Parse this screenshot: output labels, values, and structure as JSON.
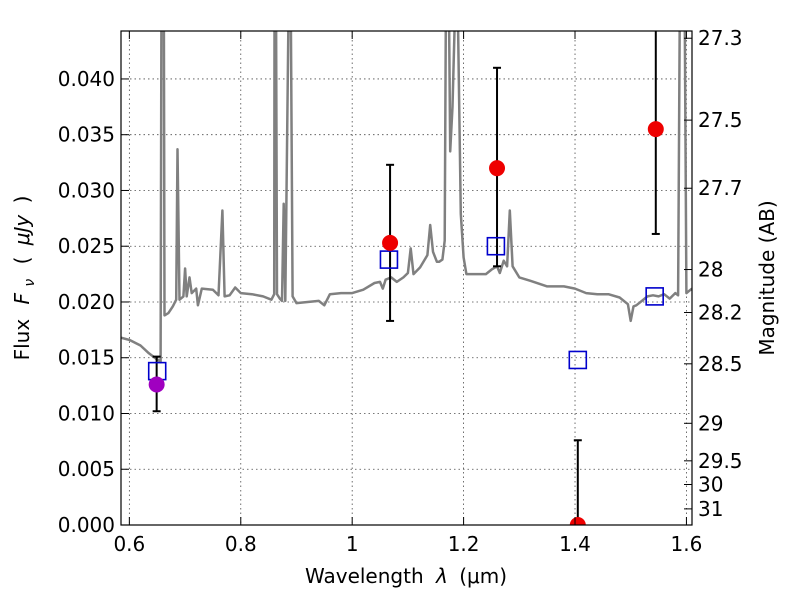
{
  "chart_data": {
    "type": "scatter",
    "xlabel": "Wavelength",
    "xlabel_symbol": "λ",
    "xlabel_unit": "(μm)",
    "ylabel": "Flux",
    "ylabel_symbol": "F",
    "ylabel_subscript": "ν",
    "ylabel_unit_open": "(",
    "ylabel_unit": "μJy",
    "ylabel_unit_close": ")",
    "y2label": "Magnitude (AB)",
    "xlim": [
      0.585,
      1.61
    ],
    "ylim": [
      0.0,
      0.0443
    ],
    "grid": true,
    "x_ticks": [
      {
        "value": 0.6,
        "label": "0.6"
      },
      {
        "value": 0.8,
        "label": "0.8"
      },
      {
        "value": 1.0,
        "label": "1"
      },
      {
        "value": 1.2,
        "label": "1.2"
      },
      {
        "value": 1.4,
        "label": "1.4"
      },
      {
        "value": 1.6,
        "label": "1.6"
      }
    ],
    "y_ticks": [
      {
        "value": 0.0,
        "label": "0.000"
      },
      {
        "value": 0.005,
        "label": "0.005"
      },
      {
        "value": 0.01,
        "label": "0.010"
      },
      {
        "value": 0.015,
        "label": "0.015"
      },
      {
        "value": 0.02,
        "label": "0.020"
      },
      {
        "value": 0.025,
        "label": "0.025"
      },
      {
        "value": 0.03,
        "label": "0.030"
      },
      {
        "value": 0.035,
        "label": "0.035"
      },
      {
        "value": 0.04,
        "label": "0.040"
      }
    ],
    "y2_ticks": [
      {
        "value": 27.3,
        "label": "27.3"
      },
      {
        "value": 27.5,
        "label": "27.5"
      },
      {
        "value": 27.7,
        "label": "27.7"
      },
      {
        "value": 28.0,
        "label": "28"
      },
      {
        "value": 28.2,
        "label": "28.2"
      },
      {
        "value": 28.5,
        "label": "28.5"
      },
      {
        "value": 29.0,
        "label": "29"
      },
      {
        "value": 29.5,
        "label": "29.5"
      },
      {
        "value": 30.0,
        "label": "30"
      },
      {
        "value": 31.0,
        "label": "31"
      }
    ],
    "model_spectrum": {
      "color": "#808080",
      "points": [
        [
          0.585,
          0.0168
        ],
        [
          0.6,
          0.0166
        ],
        [
          0.62,
          0.0161
        ],
        [
          0.635,
          0.0154
        ],
        [
          0.648,
          0.0149
        ],
        [
          0.652,
          0.0148
        ],
        [
          0.656,
          0.0146
        ],
        [
          0.6575,
          0.045
        ],
        [
          0.659,
          0.045
        ],
        [
          0.662,
          0.045
        ],
        [
          0.663,
          0.0188
        ],
        [
          0.67,
          0.019
        ],
        [
          0.678,
          0.0196
        ],
        [
          0.684,
          0.0202
        ],
        [
          0.6865,
          0.0337
        ],
        [
          0.69,
          0.0202
        ],
        [
          0.697,
          0.0205
        ],
        [
          0.7,
          0.023
        ],
        [
          0.703,
          0.0205
        ],
        [
          0.708,
          0.0222
        ],
        [
          0.712,
          0.0208
        ],
        [
          0.72,
          0.0212
        ],
        [
          0.723,
          0.0197
        ],
        [
          0.73,
          0.0212
        ],
        [
          0.75,
          0.0211
        ],
        [
          0.76,
          0.0206
        ],
        [
          0.767,
          0.0282
        ],
        [
          0.771,
          0.0205
        ],
        [
          0.78,
          0.0206
        ],
        [
          0.79,
          0.0213
        ],
        [
          0.8,
          0.0208
        ],
        [
          0.82,
          0.0207
        ],
        [
          0.84,
          0.0205
        ],
        [
          0.855,
          0.0202
        ],
        [
          0.86,
          0.0207
        ],
        [
          0.8605,
          0.045
        ],
        [
          0.8635,
          0.045
        ],
        [
          0.865,
          0.0207
        ],
        [
          0.87,
          0.0203
        ],
        [
          0.874,
          0.0201
        ],
        [
          0.877,
          0.0288
        ],
        [
          0.88,
          0.0201
        ],
        [
          0.8855,
          0.045
        ],
        [
          0.89,
          0.045
        ],
        [
          0.893,
          0.0205
        ],
        [
          0.9,
          0.0199
        ],
        [
          0.92,
          0.02
        ],
        [
          0.94,
          0.0201
        ],
        [
          0.95,
          0.0197
        ],
        [
          0.96,
          0.0207
        ],
        [
          0.98,
          0.0208
        ],
        [
          1.0,
          0.0208
        ],
        [
          1.02,
          0.0211
        ],
        [
          1.04,
          0.0217
        ],
        [
          1.05,
          0.0218
        ],
        [
          1.055,
          0.0212
        ],
        [
          1.06,
          0.022
        ],
        [
          1.07,
          0.0222
        ],
        [
          1.08,
          0.0218
        ],
        [
          1.092,
          0.0222
        ],
        [
          1.1,
          0.0226
        ],
        [
          1.105,
          0.0248
        ],
        [
          1.11,
          0.0225
        ],
        [
          1.122,
          0.0231
        ],
        [
          1.135,
          0.0242
        ],
        [
          1.14,
          0.0269
        ],
        [
          1.145,
          0.0245
        ],
        [
          1.152,
          0.0236
        ],
        [
          1.156,
          0.0236
        ],
        [
          1.162,
          0.0238
        ],
        [
          1.166,
          0.0255
        ],
        [
          1.168,
          0.045
        ],
        [
          1.174,
          0.045
        ],
        [
          1.176,
          0.0335
        ],
        [
          1.18,
          0.0375
        ],
        [
          1.184,
          0.045
        ],
        [
          1.19,
          0.045
        ],
        [
          1.195,
          0.0279
        ],
        [
          1.2,
          0.024
        ],
        [
          1.205,
          0.0225
        ],
        [
          1.22,
          0.0225
        ],
        [
          1.24,
          0.0225
        ],
        [
          1.25,
          0.0229
        ],
        [
          1.26,
          0.0232
        ],
        [
          1.265,
          0.0226
        ],
        [
          1.272,
          0.0237
        ],
        [
          1.278,
          0.0232
        ],
        [
          1.283,
          0.0282
        ],
        [
          1.288,
          0.0232
        ],
        [
          1.3,
          0.0222
        ],
        [
          1.32,
          0.0219
        ],
        [
          1.35,
          0.0214
        ],
        [
          1.38,
          0.0214
        ],
        [
          1.4,
          0.0212
        ],
        [
          1.42,
          0.0208
        ],
        [
          1.44,
          0.0207
        ],
        [
          1.46,
          0.0207
        ],
        [
          1.48,
          0.0204
        ],
        [
          1.495,
          0.0198
        ],
        [
          1.5,
          0.0183
        ],
        [
          1.505,
          0.0196
        ],
        [
          1.51,
          0.0197
        ],
        [
          1.52,
          0.0201
        ],
        [
          1.53,
          0.0205
        ],
        [
          1.54,
          0.0206
        ],
        [
          1.55,
          0.0205
        ],
        [
          1.56,
          0.0207
        ],
        [
          1.57,
          0.0203
        ],
        [
          1.58,
          0.0208
        ],
        [
          1.585,
          0.0206
        ],
        [
          1.588,
          0.045
        ],
        [
          1.597,
          0.045
        ],
        [
          1.6,
          0.0208
        ],
        [
          1.605,
          0.021
        ],
        [
          1.61,
          0.0212
        ]
      ]
    },
    "observed_points": [
      {
        "x": 0.649,
        "y": 0.0126,
        "yerr_low": 0.0102,
        "yerr_high": 0.0151,
        "color": "#a000c0"
      },
      {
        "x": 1.068,
        "y": 0.0253,
        "yerr_low": 0.0183,
        "yerr_high": 0.0323,
        "color": "#ee0000"
      },
      {
        "x": 1.26,
        "y": 0.032,
        "yerr_low": 0.0232,
        "yerr_high": 0.041,
        "color": "#ee0000"
      },
      {
        "x": 1.405,
        "y": 0.0,
        "yerr_low": 0.0,
        "yerr_high": 0.0076,
        "color": "#ee0000"
      },
      {
        "x": 1.545,
        "y": 0.0355,
        "yerr_low": 0.0261,
        "yerr_high": 0.0449,
        "color": "#ee0000"
      }
    ],
    "model_points": [
      {
        "x": 0.65,
        "y": 0.0138,
        "color": "#0000cc"
      },
      {
        "x": 1.066,
        "y": 0.0238,
        "color": "#0000cc"
      },
      {
        "x": 1.258,
        "y": 0.025,
        "color": "#0000cc"
      },
      {
        "x": 1.405,
        "y": 0.0148,
        "color": "#0000cc"
      },
      {
        "x": 1.543,
        "y": 0.0205,
        "color": "#0000cc"
      }
    ]
  }
}
